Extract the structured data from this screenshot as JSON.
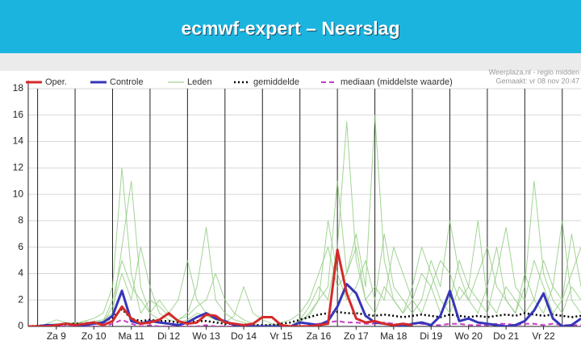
{
  "chart_data": {
    "type": "line",
    "title": "ecmwf-expert – Neerslag",
    "annotations": [
      "Weerplaza.nl - regio midden",
      "Gemaakt: vr 08 nov 20:47"
    ],
    "x": [
      -0.25,
      0,
      0.25,
      0.5,
      0.75,
      1,
      1.25,
      1.5,
      1.75,
      2,
      2.25,
      2.5,
      2.75,
      3,
      3.25,
      3.5,
      3.75,
      4,
      4.25,
      4.5,
      4.75,
      5,
      5.25,
      5.5,
      5.75,
      6,
      6.25,
      6.5,
      6.75,
      7,
      7.25,
      7.5,
      7.75,
      8,
      8.25,
      8.5,
      8.75,
      9,
      9.25,
      9.5,
      9.75,
      10,
      10.25,
      10.5,
      10.75,
      11,
      11.25,
      11.5,
      11.75,
      12,
      12.25,
      12.5,
      12.75,
      13,
      13.25,
      13.5,
      13.75,
      14,
      14.25,
      14.5
    ],
    "xlim": [
      -0.25,
      14.5
    ],
    "xgrid": [
      0,
      1,
      2,
      3,
      4,
      5,
      6,
      7,
      8,
      9,
      10,
      11,
      12,
      13,
      14
    ],
    "xticks": [
      {
        "value": 0.5,
        "label": "Za 9"
      },
      {
        "value": 1.5,
        "label": "Zo 10"
      },
      {
        "value": 2.5,
        "label": "Ma 11"
      },
      {
        "value": 3.5,
        "label": "Di 12"
      },
      {
        "value": 4.5,
        "label": "Wo 13"
      },
      {
        "value": 5.5,
        "label": "Do 14"
      },
      {
        "value": 6.5,
        "label": "Vr 15"
      },
      {
        "value": 7.5,
        "label": "Za 16"
      },
      {
        "value": 8.5,
        "label": "Zo 17"
      },
      {
        "value": 9.5,
        "label": "Ma 18"
      },
      {
        "value": 10.5,
        "label": "Di 19"
      },
      {
        "value": 11.5,
        "label": "Wo 20"
      },
      {
        "value": 12.5,
        "label": "Do 21"
      },
      {
        "value": 13.5,
        "label": "Vr 22"
      }
    ],
    "ylim": [
      0,
      18
    ],
    "yticks": [
      0,
      2,
      4,
      6,
      8,
      10,
      12,
      14,
      16,
      18
    ],
    "grid": true,
    "series": [
      {
        "name": "Oper.",
        "color": "#d42a2a",
        "width": 3,
        "values": [
          0,
          0,
          0,
          0.1,
          0.2,
          0.1,
          0.2,
          0.3,
          0.1,
          0.4,
          1.5,
          0.6,
          0.2,
          0.3,
          0.5,
          1.0,
          0.4,
          0.2,
          0.3,
          0.9,
          0.8,
          0.3,
          0.2,
          0.1,
          0.2,
          0.7,
          0.7,
          0.1,
          0,
          0,
          0,
          0.1,
          0.2,
          5.8,
          2.5,
          0.6,
          0.3,
          0.4,
          0.2,
          0.1,
          0.2,
          0.1,
          null,
          null,
          null,
          null,
          null,
          null,
          null,
          null,
          null,
          null,
          null,
          null,
          null,
          null,
          null,
          null,
          null,
          null
        ]
      },
      {
        "name": "Controle",
        "color": "#3636b8",
        "width": 3,
        "values": [
          0,
          0,
          0.1,
          0.1,
          0.2,
          0.1,
          0.1,
          0.2,
          0.3,
          0.8,
          2.7,
          0.4,
          0.2,
          0.4,
          0.3,
          0.2,
          0.1,
          0.3,
          0.7,
          1.0,
          0.6,
          0.4,
          0.1,
          0,
          0,
          0,
          0,
          0,
          0,
          0.3,
          0.2,
          0.1,
          0.4,
          1.5,
          3.2,
          2.5,
          0.8,
          0.3,
          0.2,
          0.1,
          0,
          0.2,
          0.3,
          0.1,
          0.8,
          2.7,
          0.4,
          0.6,
          0.3,
          0.2,
          0.1,
          0,
          0.1,
          0.4,
          1.2,
          2.5,
          0.6,
          0,
          0.1,
          0.6
        ]
      },
      {
        "name": "Leden",
        "color": "#8cc97a",
        "width": 1,
        "members": [
          [
            0,
            0,
            0.2,
            0.5,
            0.3,
            0.2,
            0.4,
            0.6,
            1.0,
            3,
            12,
            4,
            1,
            2,
            1.5,
            0.8,
            0.5,
            1,
            3,
            7.5,
            2,
            1,
            0.5,
            0.3,
            0,
            0,
            0.2,
            0.1,
            0,
            0.5,
            1.5,
            3,
            2,
            6,
            15.5,
            5,
            2,
            1,
            3,
            2,
            1,
            2,
            4,
            3,
            1,
            2,
            5,
            3,
            2,
            1,
            4,
            7.5,
            3,
            2,
            5,
            3,
            1,
            2,
            4,
            6
          ],
          [
            0,
            0,
            0,
            0.1,
            0.2,
            0.3,
            0.2,
            0.4,
            0.5,
            1,
            6,
            11,
            3,
            1,
            2,
            1,
            0.5,
            0.8,
            1.5,
            2,
            4,
            2,
            1,
            0.5,
            0.2,
            0,
            0,
            0.3,
            0.5,
            1,
            2,
            4,
            6,
            3,
            4,
            7,
            3,
            16,
            5,
            2,
            1,
            3,
            6,
            4,
            2,
            1,
            3,
            2,
            4,
            6,
            3,
            2,
            1,
            3,
            11,
            4,
            2,
            1,
            3,
            2
          ],
          [
            0,
            0.1,
            0.1,
            0.2,
            0.1,
            0.3,
            0.2,
            0.3,
            0.4,
            2,
            5,
            3,
            2,
            1,
            0.5,
            1,
            2,
            5,
            2,
            1,
            0.5,
            0.3,
            0.8,
            3,
            1,
            0.5,
            0.2,
            0,
            0,
            0.3,
            1,
            2,
            8,
            4,
            2,
            3,
            5,
            2,
            7,
            3,
            2,
            1,
            2,
            5,
            3,
            8,
            4,
            2,
            1,
            3,
            6,
            2,
            1,
            4,
            2,
            1,
            3,
            2,
            7,
            3
          ],
          [
            0,
            0,
            0.1,
            0.1,
            0.3,
            0.2,
            0.4,
            0.2,
            0.3,
            1.5,
            4,
            2,
            6,
            3,
            1,
            0.5,
            0.3,
            0.5,
            1,
            0.8,
            0.5,
            0.3,
            0.2,
            0.1,
            0,
            0,
            0,
            0,
            0,
            0.5,
            0.8,
            2,
            3,
            11,
            4,
            6,
            2,
            3,
            2,
            6,
            4,
            2,
            1,
            3,
            5,
            4,
            2,
            3,
            8,
            2,
            1,
            3,
            2,
            1,
            2,
            5,
            3,
            8,
            2,
            1
          ]
        ]
      },
      {
        "name": "gemiddelde",
        "color": "#000000",
        "width": 2.5,
        "dash": "2 3",
        "values": [
          0,
          0.05,
          0.1,
          0.1,
          0.15,
          0.2,
          0.2,
          0.25,
          0.3,
          0.7,
          1.3,
          0.6,
          0.4,
          0.5,
          0.4,
          0.4,
          0.3,
          0.3,
          0.4,
          0.4,
          0.3,
          0.2,
          0.2,
          0.1,
          0.1,
          0.1,
          0.1,
          0.2,
          0.3,
          0.5,
          0.7,
          0.9,
          1.0,
          1.1,
          1.0,
          1.0,
          0.9,
          0.8,
          0.9,
          0.8,
          0.7,
          0.8,
          0.9,
          0.8,
          0.7,
          0.9,
          0.8,
          0.7,
          0.8,
          0.7,
          0.8,
          0.9,
          0.8,
          1.0,
          0.9,
          0.8,
          0.9,
          0.8,
          0.7,
          0.8
        ]
      },
      {
        "name": "mediaan (middelste waarde)",
        "color": "#c83cc8",
        "width": 2,
        "dash": "6 4",
        "values": [
          0,
          0,
          0,
          0,
          0,
          0,
          0,
          0,
          0,
          0.2,
          0.5,
          0.2,
          0,
          0.1,
          0,
          0,
          0,
          0,
          0,
          0.1,
          0,
          0,
          0,
          0,
          0,
          0,
          0,
          0,
          0,
          0,
          0.1,
          0.2,
          0.3,
          0.4,
          0.3,
          0.3,
          0.2,
          0.2,
          0.3,
          0.2,
          0.1,
          0.2,
          0.2,
          0.1,
          0.1,
          0.2,
          0.2,
          0.1,
          0.1,
          0.1,
          0.2,
          0.2,
          0.1,
          0.2,
          0.2,
          0.1,
          0.2,
          0.1,
          0.1,
          0.1
        ]
      }
    ]
  }
}
